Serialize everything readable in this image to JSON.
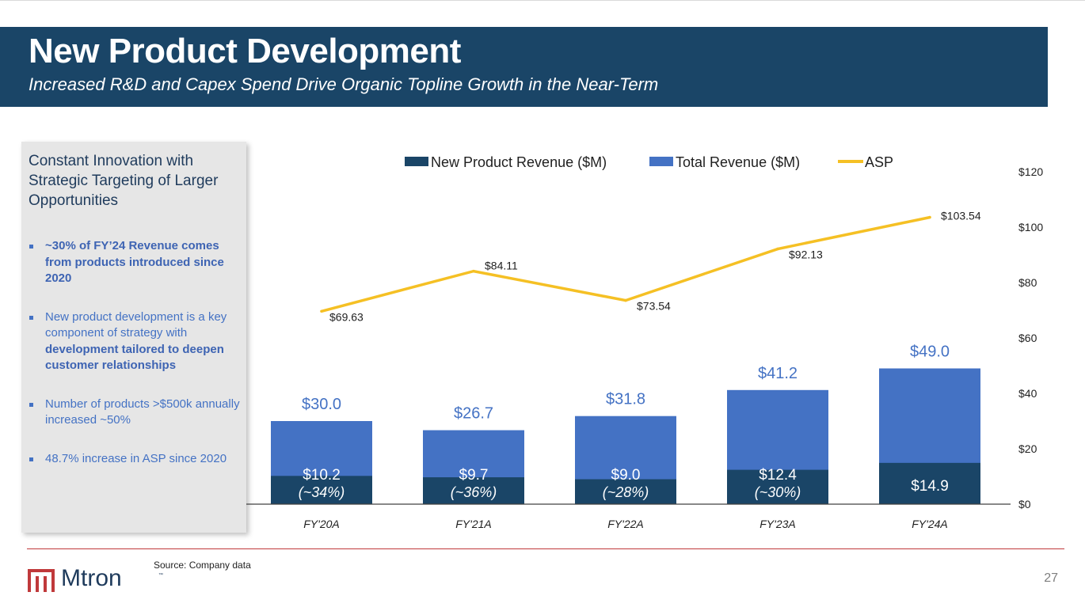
{
  "header": {
    "title": "New Product Development",
    "subtitle": "Increased R&D and Capex Spend Drive Organic Topline Growth in the Near-Term"
  },
  "sidebar": {
    "heading": "Constant Innovation with Strategic Targeting of Larger Opportunities",
    "bullets": [
      {
        "segments": [
          {
            "text": "~30% of FY’24 Revenue comes from products introduced since 2020",
            "strong": true
          }
        ]
      },
      {
        "segments": [
          {
            "text": "New product development is a key component of strategy with ",
            "strong": false
          },
          {
            "text": "development tailored to deepen customer relationships",
            "strong": true
          }
        ]
      },
      {
        "segments": [
          {
            "text": "Number of products >$500k annually increased ~50%",
            "strong": false
          }
        ]
      },
      {
        "segments": [
          {
            "text": "48.7% increase in ASP since 2020",
            "strong": false
          }
        ]
      }
    ]
  },
  "chart_data": {
    "type": "bar",
    "categories": [
      "FY'20A",
      "FY'21A",
      "FY'22A",
      "FY'23A",
      "FY'24A"
    ],
    "series": [
      {
        "name": "New Product Revenue ($M)",
        "kind": "bar",
        "color": "#1a4567",
        "values": [
          10.2,
          9.7,
          9.0,
          12.4,
          14.9
        ],
        "labels": [
          "$10.2",
          "$9.7",
          "$9.0",
          "$12.4",
          "$14.9"
        ],
        "sublabels": [
          "(~34%)",
          "(~36%)",
          "(~28%)",
          "(~30%)",
          ""
        ]
      },
      {
        "name": "Total Revenue ($M)",
        "kind": "bar",
        "color": "#4472c4",
        "values": [
          30.0,
          26.7,
          31.8,
          41.2,
          49.0
        ],
        "labels": [
          "$30.0",
          "$26.7",
          "$31.8",
          "$41.2",
          "$49.0"
        ]
      },
      {
        "name": "ASP",
        "kind": "line",
        "color": "#f5c024",
        "axis": "right",
        "values": [
          69.63,
          84.11,
          73.54,
          92.13,
          103.54
        ],
        "labels": [
          "$69.63",
          "$84.11",
          "$73.54",
          "$92.13",
          "$103.54"
        ]
      }
    ],
    "right_axis": {
      "ylim": [
        0,
        120
      ],
      "ticks": [
        "$0",
        "$20",
        "$40",
        "$60",
        "$80",
        "$100",
        "$120"
      ]
    },
    "legend": "top-center",
    "grid": false
  },
  "footer": {
    "source": "Source: Company data",
    "logo_text": "Mtron",
    "logo_tm": "™",
    "page": "27"
  },
  "colors": {
    "navy": "#1a4567",
    "blue": "#4472c4",
    "gold": "#f5c024",
    "footer_rule": "#c0393b"
  },
  "icons": {
    "logo_mark": "mtron-logo-icon"
  }
}
